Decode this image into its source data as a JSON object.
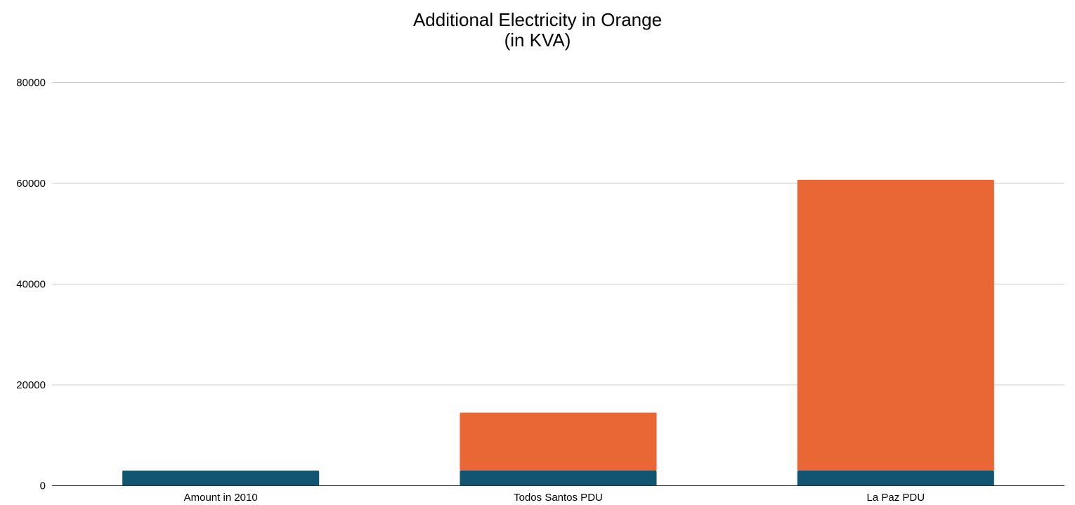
{
  "chart_data": {
    "type": "bar",
    "stacked": true,
    "title": "Additional Electricity in Orange",
    "subtitle": "(in KVA)",
    "categories": [
      "Amount in 2010",
      "Todos Santos PDU",
      "La Paz PDU"
    ],
    "series": [
      {
        "values": [
          3000,
          3000,
          3000
        ],
        "color": "#115572"
      },
      {
        "values": [
          0,
          11500,
          57700
        ],
        "color": "#e86734"
      }
    ],
    "ylim": [
      0,
      80000
    ],
    "yticks": [
      "0",
      "20000",
      "40000",
      "60000",
      "80000"
    ],
    "grid": true,
    "legend": "none"
  }
}
